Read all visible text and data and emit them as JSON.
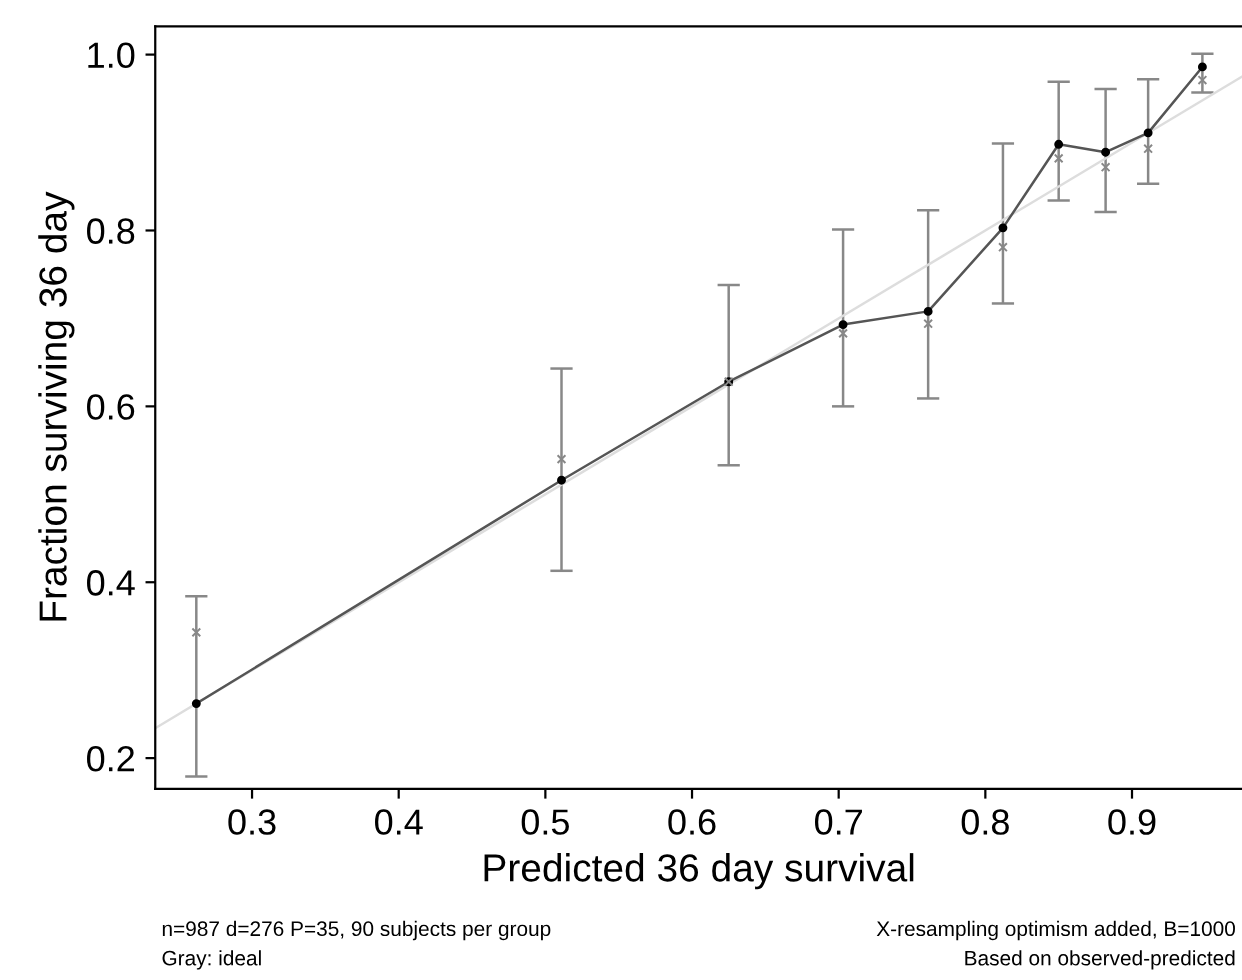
{
  "chart_data": {
    "type": "line",
    "xlabel": "Predicted 36 day survival",
    "ylabel": "Fraction surviving 36 day",
    "xlim": [
      0.234,
      0.975
    ],
    "ylim": [
      0.165,
      1.032
    ],
    "xticks": [
      0.3,
      0.4,
      0.5,
      0.6,
      0.7,
      0.8,
      0.9
    ],
    "yticks": [
      0.2,
      0.4,
      0.6,
      0.8,
      {
        "value": 1.0,
        "label": "1.0"
      }
    ],
    "grid": false,
    "legend": false,
    "series": [
      {
        "color": "#dddddd",
        "marker": "none",
        "x": [
          0.234,
          0.975
        ],
        "values": [
          0.234,
          0.975
        ]
      },
      {
        "color": "#555555",
        "marker": "circle",
        "x": [
          0.262,
          0.511,
          0.625,
          0.703,
          0.761,
          0.812,
          0.85,
          0.882,
          0.911,
          0.948
        ],
        "values": [
          0.262,
          0.516,
          0.628,
          0.693,
          0.708,
          0.803,
          0.898,
          0.889,
          0.911,
          0.986
        ],
        "errors": [
          [
            0.179,
            0.384
          ],
          [
            0.413,
            0.643
          ],
          [
            0.533,
            0.738
          ],
          [
            0.6,
            0.801
          ],
          [
            0.609,
            0.823
          ],
          [
            0.717,
            0.899
          ],
          [
            0.834,
            0.969
          ],
          [
            0.821,
            0.961
          ],
          [
            0.853,
            0.972
          ],
          [
            0.957,
            1.001
          ]
        ]
      },
      {
        "type": "scatter",
        "color": "#888888",
        "marker": "cross",
        "x": [
          0.262,
          0.511,
          0.625,
          0.703,
          0.761,
          0.812,
          0.85,
          0.882,
          0.911,
          0.948
        ],
        "values": [
          0.343,
          0.54,
          0.628,
          0.683,
          0.694,
          0.781,
          0.882,
          0.872,
          0.893,
          0.971
        ]
      }
    ],
    "annotations": [
      "n=987 d=276 P=35, 90 subjects per group",
      "Gray: ideal",
      "X-resampling optimism added, B=1000",
      "Based on observed-predicted"
    ]
  }
}
